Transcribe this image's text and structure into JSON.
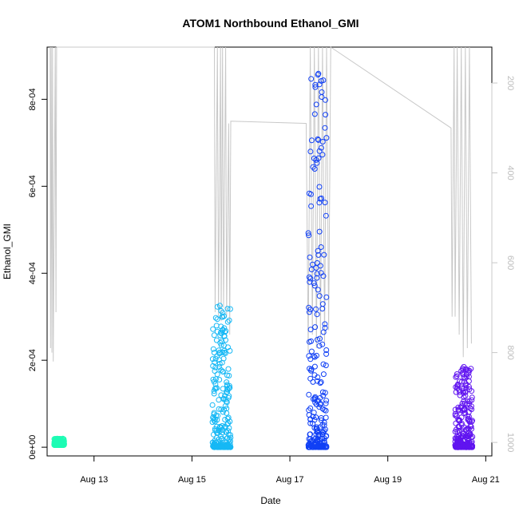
{
  "chart_data": {
    "type": "scatter",
    "title": "ATOM1 Northbound Ethanol_GMI",
    "xlabel": "Date",
    "ylabel": "Ethanol_GMI",
    "x_ticks": [
      {
        "date": "2023-08-13",
        "label": "Aug 13"
      },
      {
        "date": "2023-08-15",
        "label": "Aug 15"
      },
      {
        "date": "2023-08-17",
        "label": "Aug 17"
      },
      {
        "date": "2023-08-19",
        "label": "Aug 19"
      },
      {
        "date": "2023-08-21",
        "label": "Aug 21"
      }
    ],
    "xlim": [
      "2023-08-12T01:00",
      "2023-08-21T03:00"
    ],
    "ylim": [
      -2e-05,
      0.00092
    ],
    "y_ticks": [
      {
        "value": 0,
        "label": "0e+00"
      },
      {
        "value": 0.0002,
        "label": "2e-04"
      },
      {
        "value": 0.0004,
        "label": "4e-04"
      },
      {
        "value": 0.0006,
        "label": "6e-04"
      },
      {
        "value": 0.0008,
        "label": "8e-04"
      }
    ],
    "secondary_axis": {
      "side": "right",
      "reversed": true,
      "ylim": [
        120,
        1030
      ],
      "ticks": [
        {
          "value": 200,
          "label": "200"
        },
        {
          "value": 400,
          "label": "400"
        },
        {
          "value": 600,
          "label": "600"
        },
        {
          "value": 800,
          "label": "800"
        },
        {
          "value": 1000,
          "label": "1000"
        }
      ],
      "color": "#c8c8c8"
    },
    "clusters": [
      {
        "start": "2023-08-12T04:30",
        "end": "2023-08-12T09:30",
        "ymin": 5e-06,
        "ymax": 2e-05,
        "color": "#1dfcb4"
      },
      {
        "start": "2023-08-15T10:00",
        "end": "2023-08-15T19:00",
        "ymin": 0.0,
        "ymax": 0.000335,
        "color": "#16b8f5"
      },
      {
        "start": "2023-08-17T09:00",
        "end": "2023-08-17T18:00",
        "ymin": 0.0,
        "ymax": 0.00088,
        "color": "#1140f5"
      },
      {
        "start": "2023-08-20T09:00",
        "end": "2023-08-20T17:30",
        "ymin": 0.0,
        "ymax": 0.000185,
        "color": "#6014f0"
      }
    ],
    "secondary_line": {
      "color": "#c8c8c8",
      "points": [
        [
          "2023-08-12T02:30",
          115
        ],
        [
          "2023-08-12T02:40",
          790
        ],
        [
          "2023-08-12T03:00",
          115
        ],
        [
          "2023-08-12T03:20",
          800
        ],
        [
          "2023-08-12T03:40",
          115
        ],
        [
          "2023-08-12T04:00",
          820
        ],
        [
          "2023-08-12T05:00",
          115
        ],
        [
          "2023-08-12T05:20",
          710
        ],
        [
          "2023-08-12T05:40",
          115
        ],
        [
          "2023-08-15T11:00",
          115
        ],
        [
          "2023-08-15T11:20",
          710
        ],
        [
          "2023-08-15T12:30",
          115
        ],
        [
          "2023-08-15T13:00",
          720
        ],
        [
          "2023-08-15T14:00",
          115
        ],
        [
          "2023-08-15T14:20",
          730
        ],
        [
          "2023-08-15T15:00",
          115
        ],
        [
          "2023-08-15T15:30",
          700
        ],
        [
          "2023-08-15T16:30",
          115
        ],
        [
          "2023-08-15T17:00",
          720
        ],
        [
          "2023-08-15T18:00",
          290
        ],
        [
          "2023-08-15T18:30",
          760
        ],
        [
          "2023-08-15T19:00",
          285
        ],
        [
          "2023-08-17T08:00",
          290
        ],
        [
          "2023-08-17T09:00",
          800
        ],
        [
          "2023-08-17T10:00",
          115
        ],
        [
          "2023-08-17T11:00",
          760
        ],
        [
          "2023-08-17T12:00",
          115
        ],
        [
          "2023-08-17T13:00",
          790
        ],
        [
          "2023-08-17T14:00",
          115
        ],
        [
          "2023-08-17T15:00",
          770
        ],
        [
          "2023-08-17T16:00",
          115
        ],
        [
          "2023-08-17T17:00",
          780
        ],
        [
          "2023-08-17T18:00",
          115
        ],
        [
          "2023-08-17T19:00",
          750
        ],
        [
          "2023-08-17T20:00",
          115
        ],
        [
          "2023-08-20T07:00",
          300
        ],
        [
          "2023-08-20T07:30",
          720
        ],
        [
          "2023-08-20T08:30",
          115
        ],
        [
          "2023-08-20T09:00",
          720
        ],
        [
          "2023-08-20T10:00",
          115
        ],
        [
          "2023-08-20T11:00",
          760
        ],
        [
          "2023-08-20T12:00",
          115
        ],
        [
          "2023-08-20T13:00",
          810
        ],
        [
          "2023-08-20T14:00",
          115
        ],
        [
          "2023-08-20T15:00",
          790
        ],
        [
          "2023-08-20T16:00",
          115
        ],
        [
          "2023-08-20T17:00",
          780
        ]
      ]
    },
    "grid": false,
    "marker": "open-circle"
  }
}
